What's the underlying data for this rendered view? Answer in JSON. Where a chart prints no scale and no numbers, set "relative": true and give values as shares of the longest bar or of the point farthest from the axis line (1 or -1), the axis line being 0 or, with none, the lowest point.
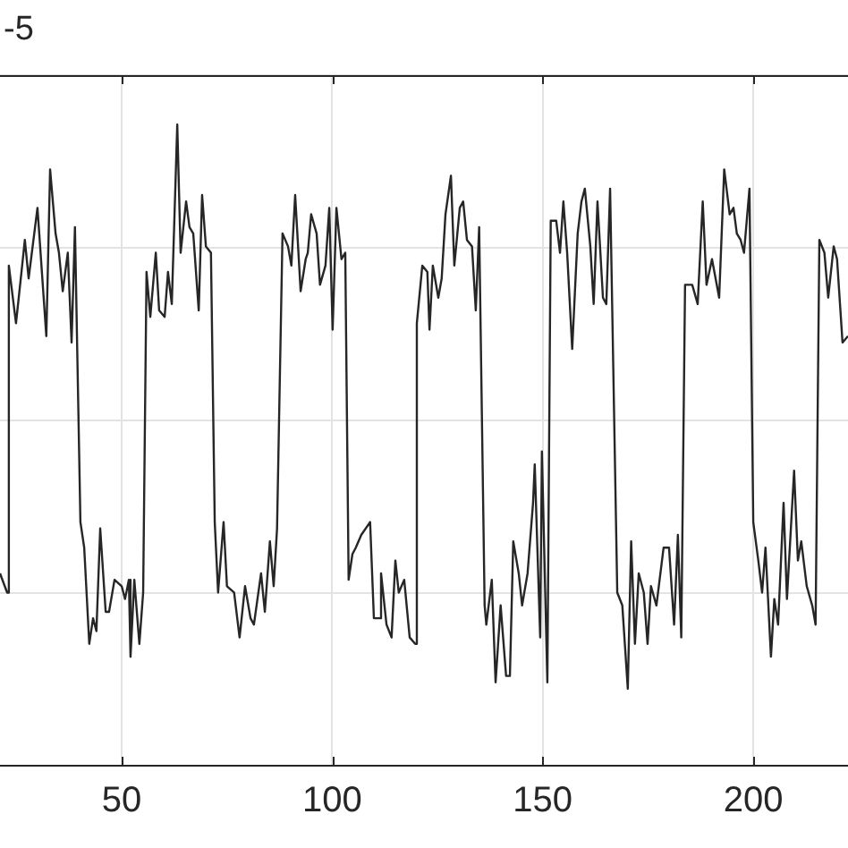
{
  "chart_data": {
    "type": "line",
    "relative": true,
    "annotations": [
      "-5"
    ],
    "xlim": [
      21.1,
      222.5
    ],
    "xticks": [
      50,
      100,
      150,
      200
    ],
    "grid": true,
    "legend": false,
    "marker": "none",
    "line_style": "solid",
    "series": [
      {
        "color": "#262626",
        "x": [
          21.1,
          22.8,
          23.2,
          24.9,
          26.2,
          27.0,
          27.9,
          30.0,
          32.1,
          33.0,
          34.3,
          35.1,
          36.0,
          37.2,
          38.1,
          38.9,
          40.2,
          41.1,
          42.3,
          43.2,
          44.0,
          44.9,
          46.2,
          47.0,
          48.3,
          50.0,
          50.8,
          51.7,
          52.1,
          53.0,
          54.2,
          55.1,
          55.9,
          56.8,
          58.1,
          58.9,
          60.2,
          61.0,
          61.9,
          63.2,
          64.0,
          65.3,
          66.1,
          67.0,
          68.3,
          69.1,
          70.0,
          71.2,
          72.1,
          72.9,
          74.2,
          75.0,
          76.7,
          78.0,
          79.3,
          80.6,
          81.4,
          83.1,
          84.0,
          85.2,
          86.1,
          86.9,
          88.2,
          89.5,
          90.3,
          91.2,
          92.5,
          93.7,
          94.2,
          95.0,
          96.3,
          97.1,
          98.4,
          99.3,
          100.1,
          101.0,
          102.2,
          103.1,
          103.9,
          104.8,
          105.6,
          106.9,
          109.0,
          109.9,
          111.2,
          111.6,
          112.9,
          114.1,
          115.0,
          115.8,
          117.1,
          118.4,
          119.7,
          120.1,
          121.4,
          122.6,
          123.1,
          123.9,
          125.2,
          126.0,
          126.9,
          128.2,
          129.0,
          130.3,
          131.1,
          132.0,
          133.2,
          134.1,
          134.9,
          136.2,
          136.6,
          137.9,
          138.8,
          140.0,
          141.3,
          142.2,
          143.0,
          144.3,
          145.1,
          146.4,
          147.7,
          148.1,
          149.4,
          149.8,
          151.1,
          151.9,
          153.2,
          154.1,
          154.9,
          155.8,
          157.0,
          158.3,
          159.2,
          160.0,
          161.3,
          162.1,
          163.0,
          164.3,
          165.1,
          166.0,
          167.7,
          168.9,
          170.2,
          171.0,
          171.9,
          172.8,
          174.0,
          174.9,
          175.7,
          177.0,
          178.7,
          180.0,
          181.2,
          182.1,
          182.9,
          183.8,
          185.5,
          186.8,
          188.0,
          188.9,
          190.2,
          191.9,
          193.1,
          194.4,
          195.3,
          196.1,
          197.0,
          197.8,
          199.1,
          200.0,
          201.2,
          202.1,
          202.9,
          204.2,
          205.0,
          205.9,
          207.2,
          208.0,
          209.7,
          210.6,
          211.4,
          212.7,
          214.0,
          214.8,
          215.7,
          216.9,
          217.8,
          219.1,
          219.9,
          221.2,
          222.5
        ],
        "values": [
          0.3,
          0.27,
          0.78,
          0.69,
          0.77,
          0.82,
          0.76,
          0.87,
          0.67,
          0.93,
          0.83,
          0.8,
          0.74,
          0.8,
          0.66,
          0.84,
          0.38,
          0.34,
          0.19,
          0.23,
          0.21,
          0.37,
          0.24,
          0.24,
          0.29,
          0.28,
          0.26,
          0.29,
          0.17,
          0.29,
          0.19,
          0.27,
          0.77,
          0.7,
          0.8,
          0.71,
          0.7,
          0.77,
          0.72,
          1.0,
          0.8,
          0.88,
          0.84,
          0.83,
          0.71,
          0.89,
          0.81,
          0.8,
          0.38,
          0.27,
          0.38,
          0.28,
          0.27,
          0.2,
          0.28,
          0.23,
          0.22,
          0.3,
          0.24,
          0.35,
          0.28,
          0.37,
          0.83,
          0.81,
          0.78,
          0.89,
          0.74,
          0.79,
          0.8,
          0.86,
          0.83,
          0.75,
          0.78,
          0.87,
          0.68,
          0.87,
          0.79,
          0.8,
          0.29,
          0.33,
          0.34,
          0.36,
          0.38,
          0.23,
          0.23,
          0.3,
          0.22,
          0.2,
          0.32,
          0.27,
          0.29,
          0.2,
          0.19,
          0.69,
          0.78,
          0.77,
          0.68,
          0.78,
          0.73,
          0.76,
          0.86,
          0.92,
          0.78,
          0.87,
          0.88,
          0.82,
          0.81,
          0.71,
          0.84,
          0.25,
          0.22,
          0.29,
          0.13,
          0.25,
          0.14,
          0.14,
          0.35,
          0.3,
          0.25,
          0.3,
          0.41,
          0.47,
          0.2,
          0.49,
          0.13,
          0.85,
          0.85,
          0.8,
          0.88,
          0.8,
          0.65,
          0.83,
          0.88,
          0.9,
          0.81,
          0.72,
          0.88,
          0.73,
          0.72,
          0.9,
          0.27,
          0.25,
          0.12,
          0.35,
          0.19,
          0.3,
          0.27,
          0.19,
          0.28,
          0.25,
          0.34,
          0.34,
          0.22,
          0.36,
          0.2,
          0.75,
          0.75,
          0.72,
          0.88,
          0.75,
          0.79,
          0.73,
          0.93,
          0.86,
          0.87,
          0.83,
          0.82,
          0.8,
          0.9,
          0.38,
          0.32,
          0.27,
          0.34,
          0.17,
          0.26,
          0.22,
          0.41,
          0.26,
          0.46,
          0.32,
          0.35,
          0.28,
          0.25,
          0.22,
          0.82,
          0.8,
          0.73,
          0.81,
          0.79,
          0.66,
          0.67
        ]
      }
    ]
  }
}
